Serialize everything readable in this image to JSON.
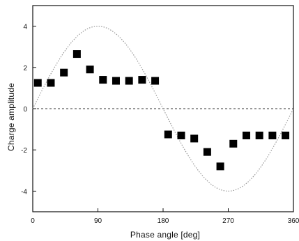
{
  "chart_data": {
    "type": "scatter",
    "title": "",
    "xlabel": "Phase angle [deg]",
    "ylabel": "Charge amplitude",
    "xlim": [
      0,
      360
    ],
    "ylim": [
      -5,
      5
    ],
    "x_ticks": [
      0,
      90,
      180,
      270,
      360
    ],
    "y_ticks": [
      -4,
      -2,
      0,
      2,
      4
    ],
    "grid": false,
    "legend": "none",
    "series": [
      {
        "marker": "filled-square",
        "x": [
          7,
          25,
          43,
          61,
          79,
          97,
          115,
          133,
          151,
          169,
          187,
          205,
          223,
          241,
          259,
          277,
          295,
          313,
          331,
          349
        ],
        "y": [
          1.25,
          1.25,
          1.75,
          2.65,
          1.9,
          1.4,
          1.35,
          1.35,
          1.4,
          1.35,
          -1.25,
          -1.3,
          -1.45,
          -2.1,
          -2.8,
          -1.7,
          -1.3,
          -1.3,
          -1.3,
          -1.3
        ]
      }
    ],
    "reference_sine": {
      "amplitude": 4,
      "style": "dotted",
      "color": "#999999"
    },
    "zero_line": {
      "y": 0,
      "style": "dashed",
      "color": "#333333"
    }
  }
}
